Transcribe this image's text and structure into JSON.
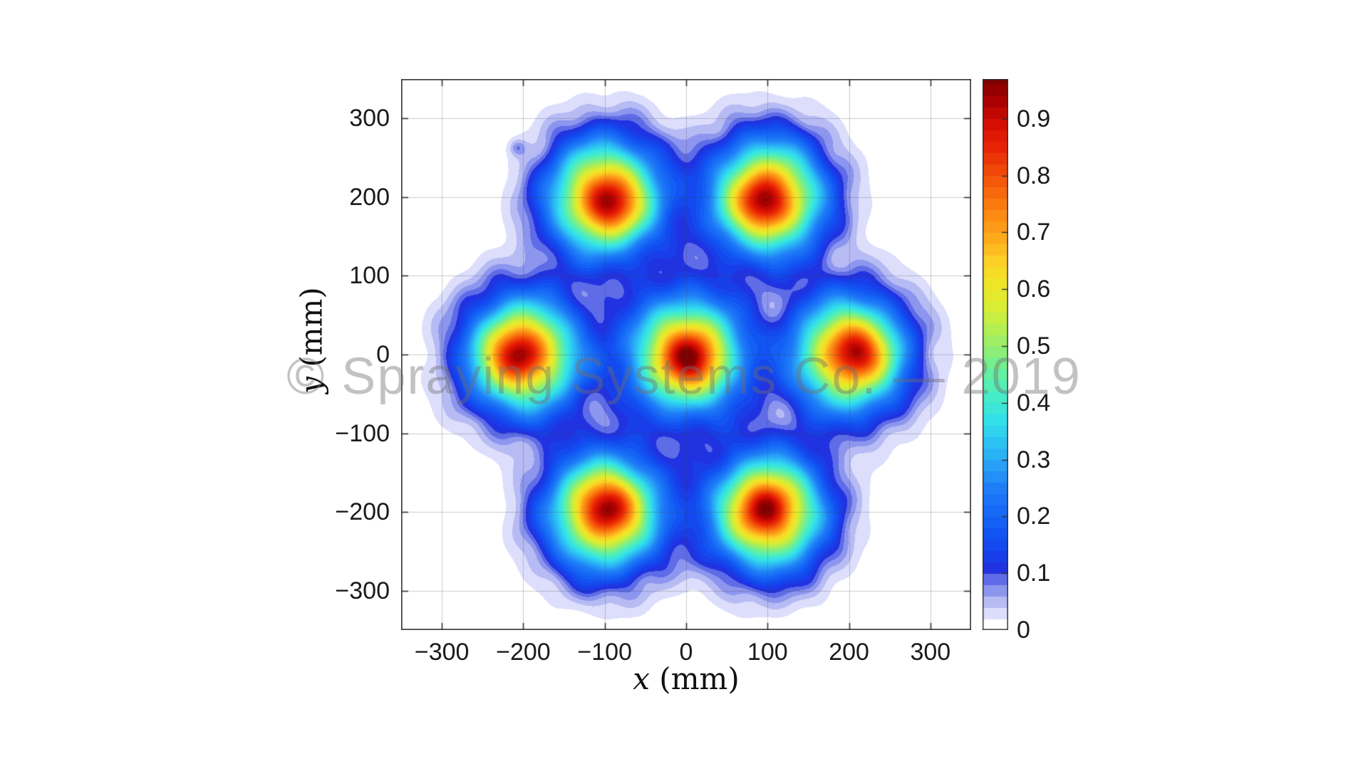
{
  "figure": {
    "watermark": "© Spraying Systems Co. — 2019"
  },
  "chart_data": {
    "type": "contour",
    "title": "",
    "xlabel": {
      "var": "x",
      "unit": "(mm)"
    },
    "ylabel": {
      "var": "y",
      "unit": "(mm)"
    },
    "xlim": [
      -350,
      350
    ],
    "ylim": [
      -350,
      350
    ],
    "grid": "on",
    "x_ticks": [
      "−300",
      "−200",
      "−100",
      "0",
      "100",
      "200",
      "300"
    ],
    "x_tick_values": [
      -300,
      -200,
      -100,
      0,
      100,
      200,
      300
    ],
    "y_ticks": [
      "300",
      "200",
      "100",
      "0",
      "−100",
      "−200",
      "−300"
    ],
    "y_tick_values": [
      300,
      200,
      100,
      0,
      -100,
      -200,
      -300
    ],
    "colorbar": {
      "min": 0,
      "max": 0.97,
      "tick_labels": [
        "0.9",
        "0.8",
        "0.7",
        "0.6",
        "0.5",
        "0.4",
        "0.3",
        "0.2",
        "0.1",
        "0"
      ],
      "tick_values": [
        0.9,
        0.8,
        0.7,
        0.6,
        0.5,
        0.4,
        0.3,
        0.2,
        0.1,
        0
      ]
    },
    "contour_step": 0.02,
    "source_sigma_x_mm": 47,
    "source_sigma_y_mm": 50,
    "core_sigma_mm": 24,
    "spray_sources": [
      {
        "x": -100,
        "y": 200,
        "peak": 0.96,
        "core_offset": [
          8,
          -10
        ]
      },
      {
        "x": 100,
        "y": 200,
        "peak": 0.97,
        "core_offset": [
          -6,
          -8
        ]
      },
      {
        "x": -200,
        "y": 0,
        "peak": 0.96,
        "core_offset": [
          -10,
          0
        ]
      },
      {
        "x": 0,
        "y": 0,
        "peak": 0.97,
        "core_offset": [
          6,
          -6
        ]
      },
      {
        "x": 200,
        "y": 0,
        "peak": 0.95,
        "core_offset": [
          12,
          4
        ]
      },
      {
        "x": -100,
        "y": -200,
        "peak": 0.96,
        "core_offset": [
          4,
          8
        ]
      },
      {
        "x": 100,
        "y": -200,
        "peak": 0.965,
        "core_offset": [
          -4,
          6
        ]
      }
    ],
    "outlier_spot": {
      "x": -207,
      "y": 263,
      "peak": 0.045,
      "sigma_mm": 7
    },
    "colormap": [
      {
        "v": 0.03,
        "c": "#dcdefb"
      },
      {
        "v": 0.05,
        "c": "#b6bbf4"
      },
      {
        "v": 0.07,
        "c": "#8d96ee"
      },
      {
        "v": 0.09,
        "c": "#5f6ce7"
      },
      {
        "v": 0.11,
        "c": "#2133e0"
      },
      {
        "v": 0.13,
        "c": "#173ee8"
      },
      {
        "v": 0.15,
        "c": "#1349ee"
      },
      {
        "v": 0.17,
        "c": "#1254f2"
      },
      {
        "v": 0.19,
        "c": "#145ff4"
      },
      {
        "v": 0.21,
        "c": "#176af6"
      },
      {
        "v": 0.25,
        "c": "#1f7ef7"
      },
      {
        "v": 0.29,
        "c": "#27a0f6"
      },
      {
        "v": 0.33,
        "c": "#2cc3f3"
      },
      {
        "v": 0.37,
        "c": "#33e0ea"
      },
      {
        "v": 0.41,
        "c": "#46ecc8"
      },
      {
        "v": 0.45,
        "c": "#64f0a2"
      },
      {
        "v": 0.49,
        "c": "#8aee78"
      },
      {
        "v": 0.53,
        "c": "#b3ee52"
      },
      {
        "v": 0.57,
        "c": "#d8ed34"
      },
      {
        "v": 0.61,
        "c": "#efe527"
      },
      {
        "v": 0.65,
        "c": "#fcd026"
      },
      {
        "v": 0.69,
        "c": "#fdab1b"
      },
      {
        "v": 0.73,
        "c": "#fb8b13"
      },
      {
        "v": 0.77,
        "c": "#f8680d"
      },
      {
        "v": 0.81,
        "c": "#f04708"
      },
      {
        "v": 0.85,
        "c": "#e82305"
      },
      {
        "v": 0.89,
        "c": "#d50e02"
      },
      {
        "v": 0.93,
        "c": "#a90101"
      },
      {
        "v": 0.97,
        "c": "#7f0000"
      }
    ]
  }
}
